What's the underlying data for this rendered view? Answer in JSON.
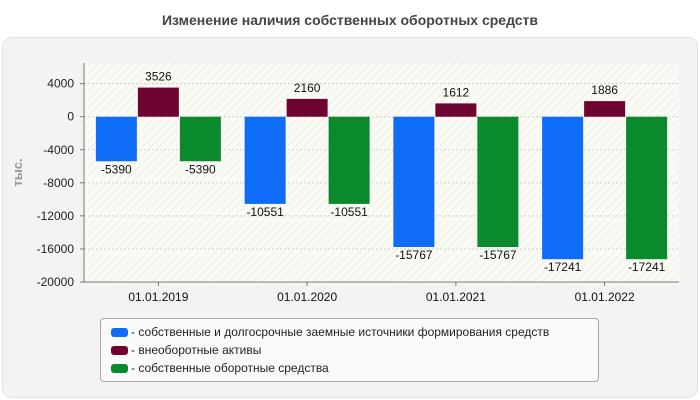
{
  "title": "Изменение наличия собственных оборотных средств",
  "chart_data": {
    "type": "bar",
    "ylabel": "тыс.",
    "xlabel": "",
    "ylim": [
      -20000,
      6500
    ],
    "yticks": [
      4000,
      0,
      -4000,
      -8000,
      -12000,
      -16000,
      -20000
    ],
    "categories": [
      "01.01.2019",
      "01.01.2020",
      "01.01.2021",
      "01.01.2022"
    ],
    "grid": true,
    "legend_position": "bottom",
    "series": [
      {
        "name": "- собственные и долгосрочные заемные источники формирования средств",
        "color": "#0f6cf7",
        "values": [
          -5390,
          -10551,
          -15767,
          -17241
        ]
      },
      {
        "name": "- внеоборотные активы",
        "color": "#6e0530",
        "values": [
          3526,
          2160,
          1612,
          1886
        ]
      },
      {
        "name": "- собственные оборотные средства",
        "color": "#0a8a2c",
        "values": [
          -5390,
          -10551,
          -15767,
          -17241
        ]
      }
    ]
  }
}
